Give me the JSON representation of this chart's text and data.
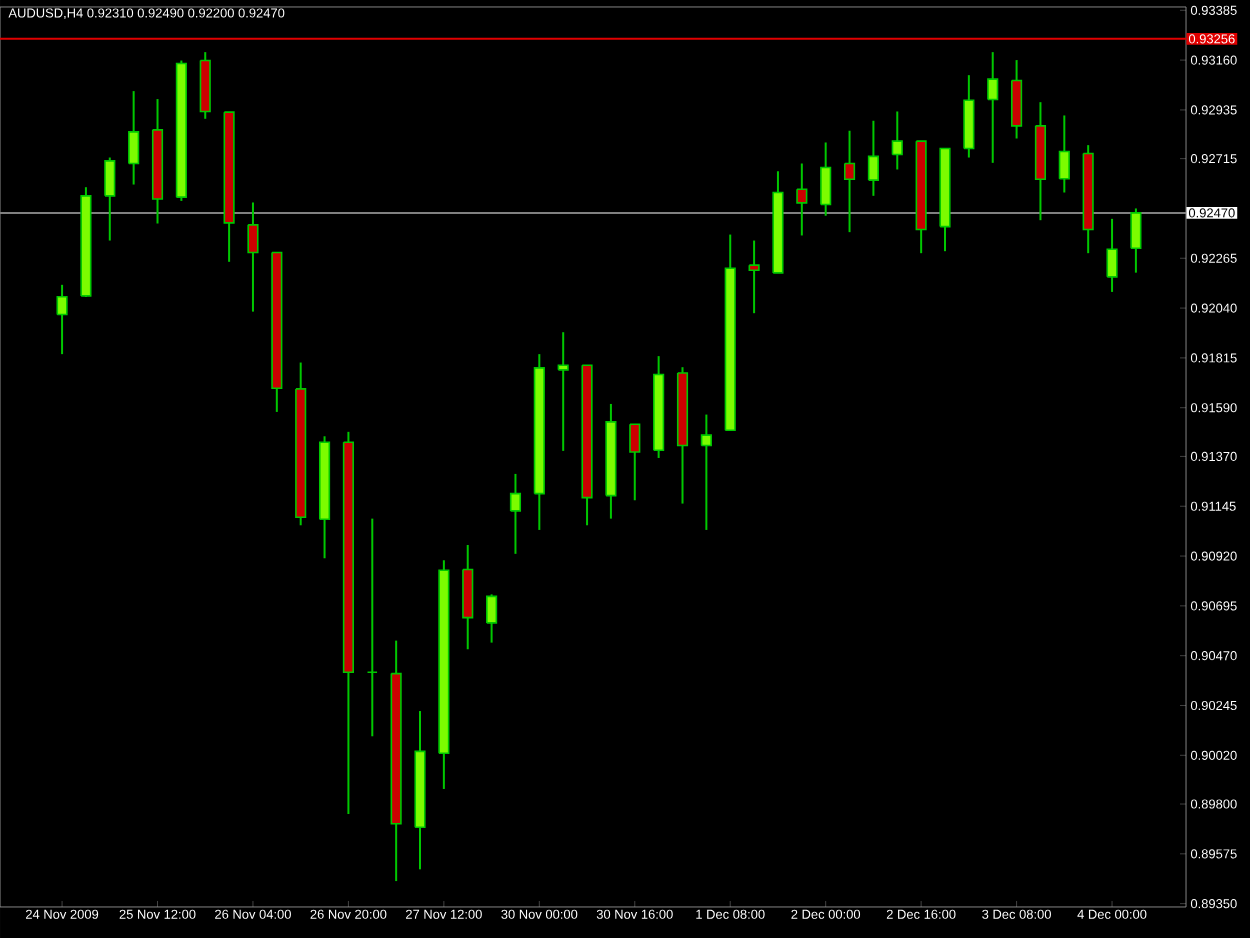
{
  "chart_data": {
    "type": "candlestick",
    "title": "AUDUSD,H4  0.92310 0.92490 0.92200 0.92470",
    "categories": [
      "24 Nov 2009",
      null,
      null,
      null,
      "25 Nov 12:00",
      null,
      null,
      null,
      "26 Nov 04:00",
      null,
      null,
      null,
      "26 Nov 20:00",
      null,
      null,
      null,
      "27 Nov 12:00",
      null,
      null,
      null,
      "30 Nov 00:00",
      null,
      null,
      null,
      "30 Nov 16:00",
      null,
      null,
      null,
      "1 Dec 08:00",
      null,
      null,
      null,
      "2 Dec 00:00",
      null,
      null,
      null,
      "2 Dec 16:00",
      null,
      null,
      null,
      "3 Dec 08:00",
      null,
      null,
      null,
      "4 Dec 00:00",
      null
    ],
    "ohlc": [
      [
        0.92011,
        0.92145,
        0.91832,
        0.92091
      ],
      [
        0.92095,
        0.92586,
        0.9209,
        0.92547
      ],
      [
        0.92547,
        0.9272,
        0.92345,
        0.92705
      ],
      [
        0.92693,
        0.9302,
        0.92598,
        0.92836
      ],
      [
        0.92845,
        0.92984,
        0.92422,
        0.92533
      ],
      [
        0.92541,
        0.93158,
        0.92524,
        0.93145
      ],
      [
        0.93158,
        0.93196,
        0.92895,
        0.92928
      ],
      [
        0.92925,
        0.92925,
        0.92249,
        0.92425
      ],
      [
        0.92416,
        0.92517,
        0.92024,
        0.92291
      ],
      [
        0.92291,
        0.92291,
        0.91571,
        0.91678
      ],
      [
        0.91675,
        0.91794,
        0.91059,
        0.91095
      ],
      [
        0.91086,
        0.91461,
        0.9091,
        0.91434
      ],
      [
        0.91434,
        0.91481,
        0.89755,
        0.90395
      ],
      [
        0.90395,
        0.91089,
        0.90106,
        0.90395
      ],
      [
        0.90389,
        0.90538,
        0.89452,
        0.89711
      ],
      [
        0.89695,
        0.9022,
        0.89505,
        0.90038
      ],
      [
        0.90029,
        0.90901,
        0.89868,
        0.90856
      ],
      [
        0.90859,
        0.9097,
        0.90499,
        0.90642
      ],
      [
        0.90618,
        0.90747,
        0.90529,
        0.90738
      ],
      [
        0.91124,
        0.91291,
        0.9093,
        0.91202
      ],
      [
        0.91202,
        0.91832,
        0.91038,
        0.9177
      ],
      [
        0.91761,
        0.91931,
        0.91395,
        0.91782
      ],
      [
        0.91782,
        0.91782,
        0.91059,
        0.91184
      ],
      [
        0.91193,
        0.91607,
        0.91089,
        0.91526
      ],
      [
        0.91515,
        0.91515,
        0.91172,
        0.9139
      ],
      [
        0.91398,
        0.91823,
        0.91363,
        0.9174
      ],
      [
        0.91747,
        0.91773,
        0.91157,
        0.91419
      ],
      [
        0.91419,
        0.91559,
        0.91038,
        0.91466
      ],
      [
        0.91488,
        0.92372,
        0.91488,
        0.9222
      ],
      [
        0.92234,
        0.92345,
        0.92017,
        0.92211
      ],
      [
        0.92199,
        0.92658,
        0.92199,
        0.92562
      ],
      [
        0.92577,
        0.92693,
        0.92368,
        0.92515
      ],
      [
        0.92508,
        0.92788,
        0.92457,
        0.92675
      ],
      [
        0.92693,
        0.92841,
        0.92383,
        0.92622
      ],
      [
        0.92618,
        0.92886,
        0.92547,
        0.92725
      ],
      [
        0.92734,
        0.92928,
        0.92666,
        0.92794
      ],
      [
        0.92794,
        0.92794,
        0.92288,
        0.92395
      ],
      [
        0.92408,
        0.92761,
        0.92297,
        0.92761
      ],
      [
        0.92761,
        0.93092,
        0.9272,
        0.92979
      ],
      [
        0.92982,
        0.93196,
        0.92696,
        0.93074
      ],
      [
        0.93068,
        0.9316,
        0.92806,
        0.92863
      ],
      [
        0.92863,
        0.9297,
        0.92437,
        0.92622
      ],
      [
        0.92624,
        0.9291,
        0.92562,
        0.92747
      ],
      [
        0.92738,
        0.92776,
        0.92288,
        0.92395
      ],
      [
        0.92181,
        0.92443,
        0.92113,
        0.92306
      ],
      [
        0.9231,
        0.9249,
        0.922,
        0.9247
      ]
    ],
    "colors": [
      "#7cfc00",
      "#7cfc00",
      "#7cfc00",
      "#7cfc00",
      "#cc0000",
      "#7cfc00",
      "#cc0000",
      "#cc0000",
      "#cc0000",
      "#cc0000",
      "#cc0000",
      "#7cfc00",
      "#cc0000",
      "#00c800",
      "#cc0000",
      "#7cfc00",
      "#7cfc00",
      "#cc0000",
      "#7cfc00",
      "#7cfc00",
      "#7cfc00",
      "#7cfc00",
      "#cc0000",
      "#7cfc00",
      "#cc0000",
      "#7cfc00",
      "#cc0000",
      "#7cfc00",
      "#7cfc00",
      "#cc0000",
      "#7cfc00",
      "#cc0000",
      "#7cfc00",
      "#cc0000",
      "#7cfc00",
      "#7cfc00",
      "#cc0000",
      "#7cfc00",
      "#7cfc00",
      "#7cfc00",
      "#cc0000",
      "#cc0000",
      "#7cfc00",
      "#cc0000",
      "#7cfc00",
      "#7cfc00"
    ],
    "ylim": [
      0.89335,
      0.934
    ],
    "yticks": [
      {
        "value": 0.8935,
        "label": "0.89350"
      },
      0.89575,
      {
        "value": 0.898,
        "label": "0.89800"
      },
      {
        "value": 0.9002,
        "label": "0.90020"
      },
      0.90245,
      {
        "value": 0.9047,
        "label": "0.90470"
      },
      0.90695,
      {
        "value": 0.9092,
        "label": "0.90920"
      },
      0.91145,
      {
        "value": 0.9137,
        "label": "0.91370"
      },
      {
        "value": 0.9159,
        "label": "0.91590"
      },
      0.91815,
      {
        "value": 0.9204,
        "label": "0.92040"
      },
      0.92265,
      0.92715,
      0.92935,
      {
        "value": 0.9316,
        "label": "0.93160"
      },
      0.93385
    ],
    "ref_lines": [
      {
        "axis": "y",
        "value": 0.93256,
        "label": "0.93256",
        "color": "#e00000"
      },
      {
        "axis": "y",
        "value": 0.9247,
        "label": "0.92470",
        "color": "#808080"
      }
    ],
    "grid": false
  }
}
